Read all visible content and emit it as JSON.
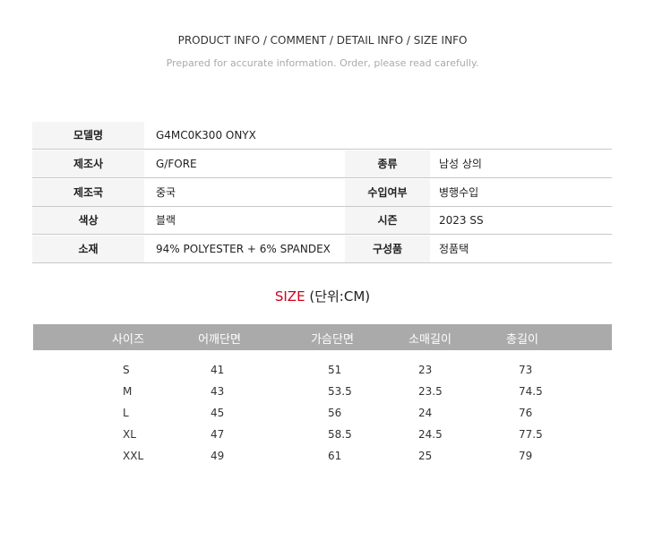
{
  "header": {
    "title": "PRODUCT INFO / COMMENT / DETAIL INFO / SIZE INFO",
    "subtitle": "Prepared for accurate information. Order, please read carefully."
  },
  "info": [
    {
      "label": "모델명",
      "value": "G4MC0K300 ONYX"
    },
    {
      "label": "제조사",
      "value": "G/FORE",
      "label2": "종류",
      "value2": "남성 상의"
    },
    {
      "label": "제조국",
      "value": "중국",
      "label2": "수입여부",
      "value2": "병행수입"
    },
    {
      "label": "색상",
      "value": "블랙",
      "label2": "시즌",
      "value2": "2023 SS"
    },
    {
      "label": "소재",
      "value": "94% POLYESTER + 6% SPANDEX",
      "label2": "구성품",
      "value2": "정품택"
    }
  ],
  "size": {
    "title": "SIZE",
    "unit": "(단위:CM)",
    "title_color": "#d0021b",
    "columns": [
      "사이즈",
      "어깨단면",
      "가슴단면",
      "소매길이",
      "총길이"
    ],
    "rows": [
      [
        "S",
        "41",
        "51",
        "23",
        "73"
      ],
      [
        "M",
        "43",
        "53.5",
        "23.5",
        "74.5"
      ],
      [
        "L",
        "45",
        "56",
        "24",
        "76"
      ],
      [
        "XL",
        "47",
        "58.5",
        "24.5",
        "77.5"
      ],
      [
        "XXL",
        "49",
        "61",
        "25",
        "79"
      ]
    ]
  }
}
